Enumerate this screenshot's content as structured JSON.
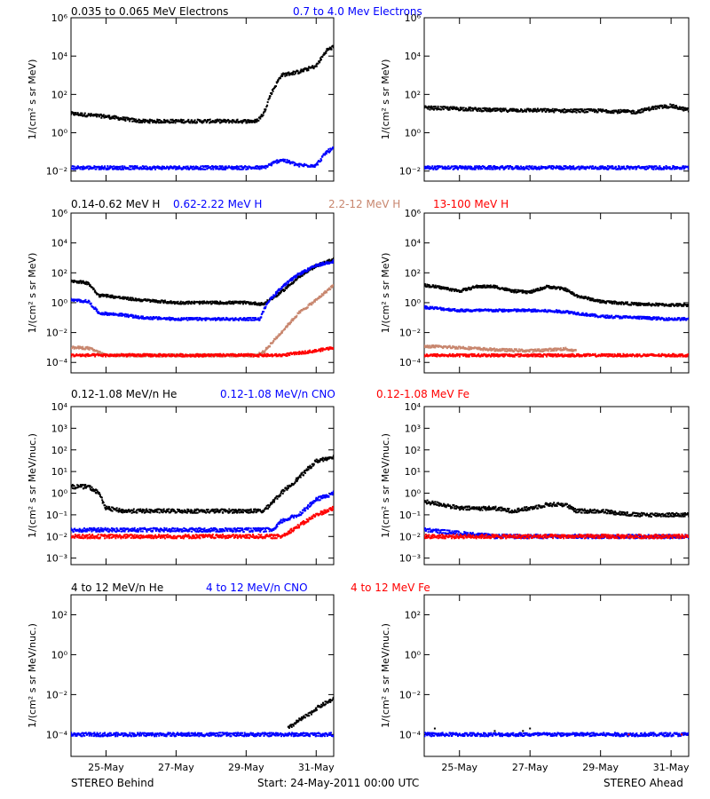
{
  "colors": {
    "black": "#000000",
    "blue": "#0000ff",
    "tan": "#c8866e",
    "red": "#ff0000"
  },
  "footer": {
    "left": "STEREO Behind",
    "center": "Start: 24-May-2011 00:00 UTC",
    "right": "STEREO Ahead"
  },
  "x_ticks": [
    "25-May",
    "27-May",
    "29-May",
    "31-May"
  ],
  "rows": [
    {
      "ylabel": "1/(cm² s sr MeV)",
      "legend": [
        {
          "text": "0.035 to 0.065 MeV Electrons",
          "color": "#000000"
        },
        {
          "text": "0.7 to 4.0 Mev Electrons",
          "color": "#0000ff"
        }
      ],
      "y_ticks": [
        "10⁻²",
        "10⁰",
        "10²",
        "10⁴",
        "10⁶"
      ]
    },
    {
      "ylabel": "1/(cm² s sr MeV)",
      "legend": [
        {
          "text": "0.14-0.62 MeV H",
          "color": "#000000"
        },
        {
          "text": "0.62-2.22 MeV H",
          "color": "#0000ff"
        },
        {
          "text": "2.2-12 MeV H",
          "color": "#c8866e"
        },
        {
          "text": "13-100 MeV H",
          "color": "#ff0000"
        }
      ],
      "y_ticks": [
        "10⁻⁴",
        "10⁻²",
        "10⁰",
        "10²",
        "10⁴",
        "10⁶"
      ]
    },
    {
      "ylabel": "1/(cm² s sr MeV/nuc.)",
      "legend": [
        {
          "text": "0.12-1.08 MeV/n He",
          "color": "#000000"
        },
        {
          "text": "0.12-1.08 MeV/n CNO",
          "color": "#0000ff"
        },
        {
          "text": "0.12-1.08 MeV Fe",
          "color": "#ff0000"
        }
      ],
      "y_ticks": [
        "10⁻³",
        "10⁻²",
        "10⁻¹",
        "10⁰",
        "10¹",
        "10²",
        "10³",
        "10⁴"
      ]
    },
    {
      "ylabel": "1/(cm² s sr MeV/nuc.)",
      "legend": [
        {
          "text": "4 to 12 MeV/n He",
          "color": "#000000"
        },
        {
          "text": "4 to 12 MeV/n CNO",
          "color": "#0000ff"
        },
        {
          "text": "4 to 12 MeV Fe",
          "color": "#ff0000"
        }
      ],
      "y_ticks": [
        "10⁻⁴",
        "10⁻²",
        "10⁰",
        "10²"
      ]
    }
  ],
  "chart_data": [
    {
      "type": "scatter",
      "panel": "behind-electrons",
      "yscale": "log",
      "xlim": [
        0,
        7.5
      ],
      "ylim": [
        0.003,
        1000000
      ],
      "series": [
        {
          "name": "0.035 to 0.065 MeV Electrons",
          "color": "#000000",
          "x": [
            0,
            1,
            2,
            3,
            4,
            5,
            5.3,
            5.5,
            5.7,
            6,
            6.5,
            7,
            7.3,
            7.5
          ],
          "y": [
            10,
            7,
            4,
            4,
            4,
            4,
            4,
            10,
            100,
            1000,
            1500,
            3000,
            20000,
            30000
          ]
        },
        {
          "name": "0.7 to 4.0 Mev Electrons",
          "color": "#0000ff",
          "x": [
            0,
            2,
            4,
            5.5,
            6,
            6.5,
            7,
            7.3,
            7.5
          ],
          "y": [
            0.015,
            0.015,
            0.015,
            0.015,
            0.04,
            0.02,
            0.02,
            0.1,
            0.15
          ]
        }
      ]
    },
    {
      "type": "scatter",
      "panel": "ahead-electrons",
      "yscale": "log",
      "xlim": [
        0,
        7.5
      ],
      "ylim": [
        0.003,
        1000000
      ],
      "series": [
        {
          "name": "0.035 to 0.065 MeV Electrons",
          "color": "#000000",
          "x": [
            0,
            1,
            2,
            3,
            4,
            5,
            6,
            6.5,
            7,
            7.5
          ],
          "y": [
            20,
            18,
            15,
            15,
            14,
            14,
            12,
            20,
            25,
            15
          ]
        },
        {
          "name": "0.7 to 4.0 Mev Electrons",
          "color": "#0000ff",
          "x": [
            0,
            2,
            4,
            6,
            7.5
          ],
          "y": [
            0.015,
            0.015,
            0.015,
            0.015,
            0.015
          ]
        }
      ]
    },
    {
      "type": "scatter",
      "panel": "behind-protons",
      "yscale": "log",
      "xlim": [
        0,
        7.5
      ],
      "ylim": [
        2e-05,
        1000000
      ],
      "series": [
        {
          "name": "0.14-0.62 MeV H",
          "color": "#000000",
          "x": [
            0,
            0.5,
            0.8,
            1,
            1.5,
            2,
            3,
            4,
            5,
            5.5,
            6,
            6.5,
            7,
            7.5
          ],
          "y": [
            30,
            20,
            3,
            3,
            2,
            1.5,
            1,
            1,
            1,
            0.8,
            5,
            50,
            300,
            800
          ]
        },
        {
          "name": "0.62-2.22 MeV H",
          "color": "#0000ff",
          "x": [
            0,
            0.5,
            0.8,
            1.5,
            2,
            3,
            4,
            5,
            5.4,
            5.6,
            6,
            6.5,
            7,
            7.5
          ],
          "y": [
            1.5,
            1.2,
            0.2,
            0.15,
            0.1,
            0.08,
            0.08,
            0.08,
            0.08,
            1,
            10,
            80,
            300,
            600
          ]
        },
        {
          "name": "2.2-12 MeV H",
          "color": "#c8866e",
          "x": [
            0,
            0.5,
            1,
            1.5,
            5.3,
            5.5,
            6,
            6.5,
            7,
            7.5
          ],
          "y": [
            0.001,
            0.0009,
            0.0003,
            0.0003,
            0.0003,
            0.0005,
            0.01,
            0.2,
            1.5,
            15
          ]
        },
        {
          "name": "13-100 MeV H",
          "color": "#ff0000",
          "x": [
            0,
            2,
            4,
            6,
            7,
            7.5
          ],
          "y": [
            0.0003,
            0.0003,
            0.0003,
            0.0003,
            0.0006,
            0.001
          ]
        }
      ]
    },
    {
      "type": "scatter",
      "panel": "ahead-protons",
      "yscale": "log",
      "xlim": [
        0,
        7.5
      ],
      "ylim": [
        2e-05,
        1000000
      ],
      "series": [
        {
          "name": "0.14-0.62 MeV H",
          "color": "#000000",
          "x": [
            0,
            0.5,
            1,
            1.5,
            2,
            2.5,
            3,
            3.5,
            4,
            4.3,
            5,
            6,
            7,
            7.5
          ],
          "y": [
            15,
            10,
            6,
            12,
            12,
            6,
            5,
            12,
            8,
            3,
            1.2,
            0.8,
            0.7,
            0.7
          ]
        },
        {
          "name": "0.62-2.22 MeV H",
          "color": "#0000ff",
          "x": [
            0,
            1,
            2,
            3,
            4,
            5,
            6,
            7,
            7.5
          ],
          "y": [
            0.5,
            0.3,
            0.3,
            0.3,
            0.25,
            0.12,
            0.1,
            0.08,
            0.08
          ]
        },
        {
          "name": "2.2-12 MeV H",
          "color": "#c8866e",
          "x": [
            0,
            1,
            2,
            3,
            4,
            4.3
          ],
          "y": [
            0.0012,
            0.001,
            0.0007,
            0.0006,
            0.0008,
            0.0006
          ]
        },
        {
          "name": "13-100 MeV H",
          "color": "#ff0000",
          "x": [
            0,
            2,
            4,
            6,
            7.5
          ],
          "y": [
            0.0003,
            0.0003,
            0.0003,
            0.0003,
            0.0003
          ]
        }
      ]
    },
    {
      "type": "scatter",
      "panel": "behind-heavy-low",
      "yscale": "log",
      "xlim": [
        0,
        7.5
      ],
      "ylim": [
        0.0005,
        10000
      ],
      "series": [
        {
          "name": "0.12-1.08 MeV/n He",
          "color": "#000000",
          "x": [
            0,
            0.5,
            0.8,
            1,
            1.5,
            2,
            3,
            4,
            5,
            5.5,
            6,
            6.5,
            7,
            7.5
          ],
          "y": [
            2,
            2,
            1,
            0.2,
            0.15,
            0.15,
            0.15,
            0.15,
            0.15,
            0.15,
            1,
            5,
            30,
            50
          ]
        },
        {
          "name": "0.12-1.08 MeV/n CNO",
          "color": "#0000ff",
          "x": [
            0,
            2,
            4,
            5.8,
            6,
            6.5,
            7,
            7.5
          ],
          "y": [
            0.02,
            0.02,
            0.02,
            0.02,
            0.05,
            0.1,
            0.5,
            1
          ]
        },
        {
          "name": "0.12-1.08 MeV Fe",
          "color": "#ff0000",
          "x": [
            0,
            2,
            4,
            6,
            6.5,
            7,
            7.5
          ],
          "y": [
            0.01,
            0.01,
            0.01,
            0.01,
            0.03,
            0.1,
            0.2
          ]
        }
      ]
    },
    {
      "type": "scatter",
      "panel": "ahead-heavy-low",
      "yscale": "log",
      "xlim": [
        0,
        7.5
      ],
      "ylim": [
        0.0005,
        10000
      ],
      "series": [
        {
          "name": "0.12-1.08 MeV/n He",
          "color": "#000000",
          "x": [
            0,
            0.5,
            1,
            1.5,
            2,
            2.5,
            3,
            3.5,
            4,
            4.3,
            5,
            6,
            7,
            7.5
          ],
          "y": [
            0.4,
            0.3,
            0.2,
            0.2,
            0.2,
            0.15,
            0.2,
            0.3,
            0.3,
            0.15,
            0.15,
            0.1,
            0.1,
            0.1
          ]
        },
        {
          "name": "0.12-1.08 MeV/n CNO",
          "color": "#0000ff",
          "x": [
            0,
            2,
            4,
            6,
            7.5
          ],
          "y": [
            0.02,
            0.01,
            0.01,
            0.01,
            0.01
          ]
        },
        {
          "name": "0.12-1.08 MeV Fe",
          "color": "#ff0000",
          "x": [
            0,
            2,
            4,
            6,
            7.5
          ],
          "y": [
            0.01,
            0.01,
            0.01,
            0.01,
            0.01
          ]
        }
      ]
    },
    {
      "type": "scatter",
      "panel": "behind-heavy-high",
      "yscale": "log",
      "xlim": [
        0,
        7.5
      ],
      "ylim": [
        8e-06,
        1000
      ],
      "series": [
        {
          "name": "4 to 12 MeV/n He",
          "color": "#000000",
          "x": [
            6.2,
            6.5,
            6.8,
            7,
            7.3,
            7.5
          ],
          "y": [
            0.0002,
            0.0005,
            0.001,
            0.002,
            0.004,
            0.006
          ]
        },
        {
          "name": "4 to 12 MeV/n CNO",
          "color": "#0000ff",
          "x": [
            0,
            2,
            4,
            6,
            7.5
          ],
          "y": [
            0.0001,
            0.0001,
            0.0001,
            0.0001,
            0.0001
          ]
        },
        {
          "name": "4 to 12 MeV Fe",
          "color": "#ff0000",
          "x": [],
          "y": []
        }
      ]
    },
    {
      "type": "scatter",
      "panel": "ahead-heavy-high",
      "yscale": "log",
      "xlim": [
        0,
        7.5
      ],
      "ylim": [
        8e-06,
        1000
      ],
      "series": [
        {
          "name": "4 to 12 MeV/n He",
          "color": "#000000",
          "x": [
            0.3,
            2,
            2.8,
            3
          ],
          "y": [
            0.0002,
            0.00015,
            0.00015,
            0.0002
          ]
        },
        {
          "name": "4 to 12 MeV/n CNO",
          "color": "#0000ff",
          "x": [
            0,
            2,
            4,
            6,
            7.5
          ],
          "y": [
            0.0001,
            0.0001,
            0.0001,
            0.0001,
            0.0001
          ]
        },
        {
          "name": "4 to 12 MeV Fe",
          "color": "#ff0000",
          "x": [
            5.8,
            7.3
          ],
          "y": [
            0.0001,
            0.0001
          ]
        }
      ]
    }
  ]
}
